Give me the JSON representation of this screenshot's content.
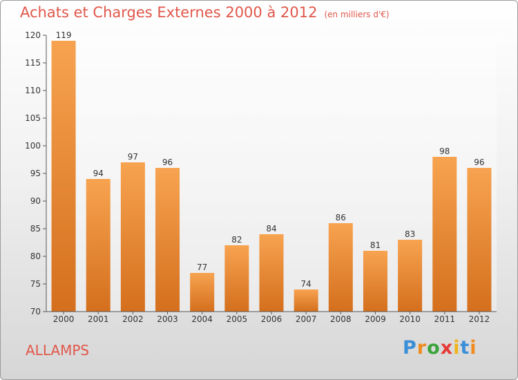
{
  "title": "Achats et Charges Externes 2000 à 2012",
  "unit": "(en milliers d'€)",
  "commune": "ALLAMPS",
  "logo": {
    "letters": [
      "P",
      "r",
      "o",
      "x",
      "i",
      "t",
      "i"
    ],
    "colors": [
      "#3a8fd8",
      "#f08a1c",
      "#3aa33a",
      "#e53935",
      "#f0b41c",
      "#3a8fd8",
      "#f08a1c"
    ]
  },
  "colors": {
    "accent": "#e0574a",
    "bar_light": "#f7a350",
    "bar_dark": "#d46f1d"
  },
  "chart_data": {
    "type": "bar",
    "categories": [
      "2000",
      "2001",
      "2002",
      "2003",
      "2004",
      "2005",
      "2006",
      "2007",
      "2008",
      "2009",
      "2010",
      "2011",
      "2012"
    ],
    "values": [
      119,
      94,
      97,
      96,
      77,
      82,
      84,
      74,
      86,
      81,
      83,
      98,
      96
    ],
    "ylim": [
      70,
      120
    ],
    "yticks": [
      70,
      75,
      80,
      85,
      90,
      95,
      100,
      105,
      110,
      115,
      120
    ],
    "grid": false,
    "data_labels": true
  }
}
